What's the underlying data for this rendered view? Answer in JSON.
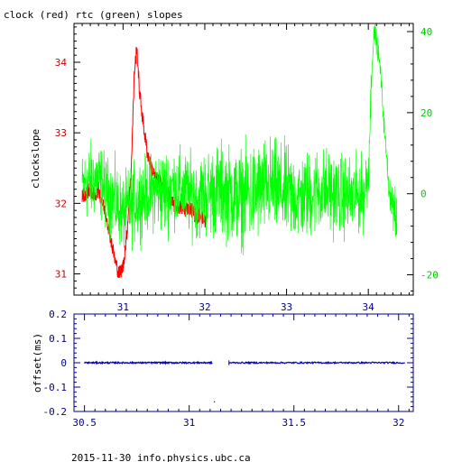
{
  "page": {
    "title": "clock (red) rtc (green) slopes",
    "footer": "2015-11-30 info.physics.ubc.ca"
  },
  "colors": {
    "clock": "#ff0000",
    "rtc": "#00ff00",
    "offset": "#0000c0",
    "frame": "#000000",
    "bottom_axis": "#00008b"
  },
  "chart_data": [
    {
      "type": "line",
      "title": "clock (red) rtc (green) slopes",
      "ylabel": "clockslope",
      "ylabel_right": "",
      "xlim": [
        30.4,
        34.55
      ],
      "ylim": [
        30.7,
        34.55
      ],
      "ylim_right": [
        -25,
        42
      ],
      "x_ticks": [
        31,
        32,
        33,
        34
      ],
      "x_tick_labels": [
        "31",
        "32",
        "33",
        "34"
      ],
      "y_ticks": [
        31,
        32,
        33,
        34
      ],
      "y_tick_labels": [
        "31",
        "32",
        "33",
        "34"
      ],
      "y_right_ticks": [
        -20,
        0,
        20,
        40
      ],
      "y_right_tick_labels": [
        "-20",
        "0",
        "20",
        "40"
      ],
      "grid": false,
      "series": [
        {
          "axis": "left",
          "color": "#ff0000",
          "x": [
            30.5,
            30.55,
            30.6,
            30.65,
            30.7,
            30.75,
            30.8,
            30.85,
            30.9,
            30.95,
            31.0,
            31.05,
            31.1,
            31.14,
            31.17,
            31.2,
            31.25,
            31.3,
            31.35,
            31.4,
            31.45,
            31.5,
            31.55,
            31.6,
            31.65,
            31.7,
            31.75,
            31.8,
            31.85,
            31.9,
            31.95,
            32.0,
            32.03
          ],
          "y": [
            32.1,
            32.15,
            32.2,
            32.1,
            32.2,
            32.0,
            31.8,
            31.5,
            31.2,
            31.0,
            31.1,
            31.6,
            32.5,
            33.9,
            34.2,
            33.6,
            33.1,
            32.7,
            32.5,
            32.35,
            32.3,
            32.25,
            32.1,
            32.0,
            31.95,
            31.95,
            31.9,
            31.95,
            31.9,
            31.8,
            31.85,
            31.75,
            31.8
          ]
        },
        {
          "axis": "right",
          "color": "#00ff00",
          "x": [
            30.5,
            30.6,
            30.7,
            30.8,
            30.9,
            31.0,
            31.1,
            31.2,
            31.3,
            31.4,
            31.5,
            31.6,
            31.7,
            31.8,
            31.9,
            32.0,
            32.2,
            32.4,
            32.6,
            32.8,
            33.0,
            33.2,
            33.4,
            33.6,
            33.8,
            33.95,
            34.0,
            34.05,
            34.08,
            34.12,
            34.15,
            34.2,
            34.25,
            34.3,
            34.35
          ],
          "y": [
            2,
            3,
            4,
            0,
            -2,
            -5,
            -3,
            -1,
            0,
            1,
            0,
            2,
            1,
            0,
            -1,
            0,
            1,
            -1,
            0,
            2,
            0,
            -1,
            1,
            0,
            -1,
            0,
            5,
            35,
            40,
            35,
            30,
            15,
            2,
            -3,
            -8
          ],
          "spread": [
            9,
            11,
            10,
            10,
            11,
            10,
            11,
            11,
            10,
            11,
            12,
            11,
            11,
            11,
            11,
            12,
            13,
            13,
            14,
            13,
            13,
            12,
            12,
            11,
            11,
            10,
            10,
            4,
            3,
            3,
            3,
            3,
            4,
            6,
            8
          ]
        }
      ]
    },
    {
      "type": "scatter",
      "ylabel": "offset(ms)",
      "xlim": [
        30.45,
        32.07
      ],
      "ylim": [
        -0.2,
        0.2
      ],
      "x_ticks": [
        30.5,
        31,
        31.5,
        32
      ],
      "x_tick_labels": [
        "30.5",
        "31",
        "31.5",
        "32"
      ],
      "y_ticks": [
        0.2,
        0.1,
        0,
        -0.1,
        -0.2
      ],
      "y_tick_labels": [
        "0.2",
        "0.1",
        "0",
        "-0.1",
        "-0.2"
      ],
      "grid": false,
      "series": [
        {
          "color": "#0000c0",
          "x_start": 30.5,
          "x_end": 31.11,
          "y": 0.0,
          "note_x": 31.12,
          "note_y": -0.16
        },
        {
          "color": "#0000c0",
          "x_start": 31.19,
          "x_end": 32.03,
          "y": 0.0
        }
      ]
    }
  ]
}
